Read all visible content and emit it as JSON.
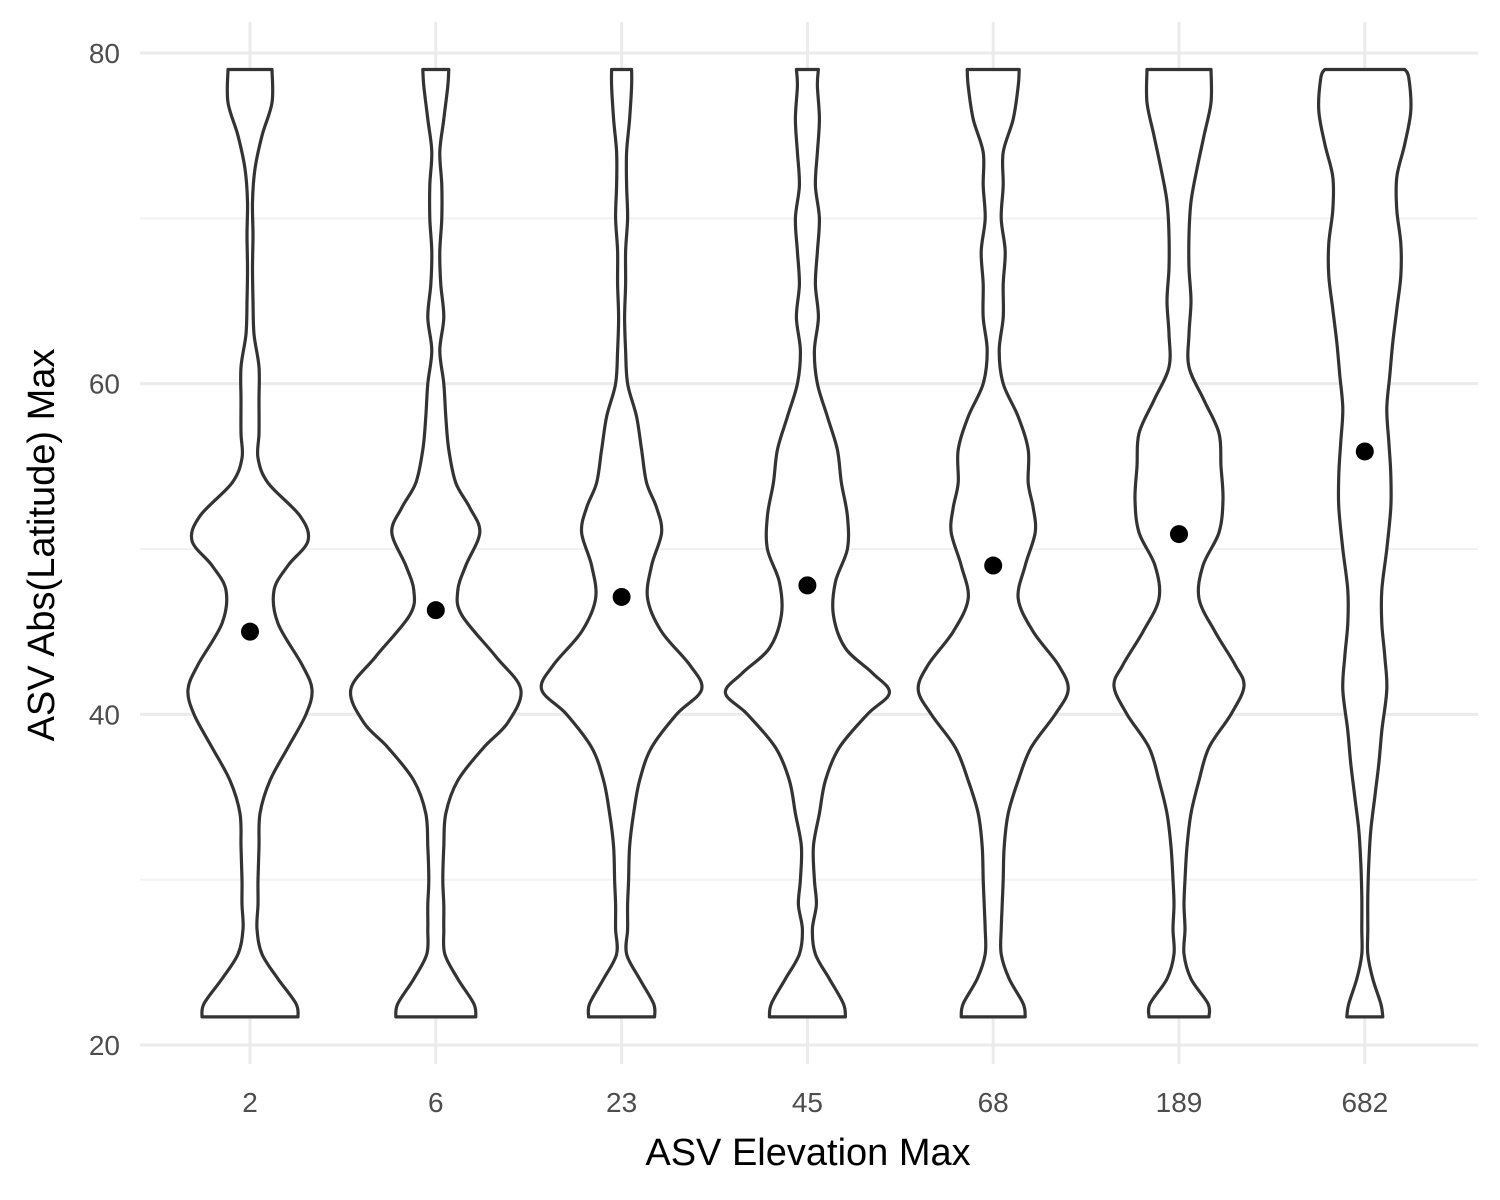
{
  "chart_data": {
    "type": "violin",
    "xlabel": "ASV Elevation Max",
    "ylabel": "ASV Abs(Latitude) Max",
    "categories": [
      "2",
      "6",
      "23",
      "45",
      "68",
      "189",
      "682"
    ],
    "ylim": [
      20,
      80
    ],
    "y_ticks": [
      20,
      40,
      60,
      80
    ],
    "y_tick_labels": [
      "20",
      "40",
      "60",
      "80"
    ],
    "y_range_data": [
      21.7,
      79
    ],
    "grid": "major and minor",
    "points": [
      {
        "category": "2",
        "y": 45.0
      },
      {
        "category": "6",
        "y": 46.3
      },
      {
        "category": "23",
        "y": 47.1
      },
      {
        "category": "45",
        "y": 47.8
      },
      {
        "category": "68",
        "y": 49.0
      },
      {
        "category": "189",
        "y": 50.9
      },
      {
        "category": "682",
        "y": 55.9
      }
    ],
    "series": [
      {
        "category": "2",
        "profile": [
          [
            21.7,
            48
          ],
          [
            22.5,
            46
          ],
          [
            24,
            28
          ],
          [
            25.5,
            12
          ],
          [
            27,
            7
          ],
          [
            28.5,
            8
          ],
          [
            30,
            8
          ],
          [
            32,
            9
          ],
          [
            34,
            10
          ],
          [
            36,
            20
          ],
          [
            38,
            38
          ],
          [
            40,
            56
          ],
          [
            41.5,
            62
          ],
          [
            43,
            52
          ],
          [
            45.5,
            28
          ],
          [
            47.5,
            24
          ],
          [
            49,
            38
          ],
          [
            50.5,
            58
          ],
          [
            52,
            50
          ],
          [
            54,
            18
          ],
          [
            55.5,
            8
          ],
          [
            57,
            9
          ],
          [
            59,
            9
          ],
          [
            61,
            9
          ],
          [
            63,
            4
          ],
          [
            65,
            3
          ],
          [
            67,
            2.5
          ],
          [
            69,
            3
          ],
          [
            71,
            2.5
          ],
          [
            73,
            5
          ],
          [
            75,
            12
          ],
          [
            77,
            22
          ],
          [
            79,
            22
          ]
        ]
      },
      {
        "category": "6",
        "profile": [
          [
            21.7,
            40
          ],
          [
            22.5,
            38
          ],
          [
            24,
            22
          ],
          [
            25.5,
            9
          ],
          [
            27,
            8
          ],
          [
            28.5,
            8
          ],
          [
            30,
            7
          ],
          [
            32,
            8
          ],
          [
            34,
            10
          ],
          [
            36,
            22
          ],
          [
            38,
            48
          ],
          [
            39.5,
            72
          ],
          [
            41.5,
            85
          ],
          [
            43.5,
            60
          ],
          [
            46,
            26
          ],
          [
            47.5,
            22
          ],
          [
            49,
            30
          ],
          [
            51,
            44
          ],
          [
            52.5,
            34
          ],
          [
            54,
            20
          ],
          [
            56,
            13
          ],
          [
            58,
            10
          ],
          [
            60,
            8
          ],
          [
            62,
            4
          ],
          [
            64,
            8
          ],
          [
            66,
            5
          ],
          [
            68,
            4
          ],
          [
            70,
            6
          ],
          [
            72,
            6
          ],
          [
            74,
            4
          ],
          [
            76,
            8
          ],
          [
            78,
            12
          ],
          [
            79,
            13
          ]
        ]
      },
      {
        "category": "23",
        "profile": [
          [
            21.7,
            33
          ],
          [
            22.5,
            32
          ],
          [
            24,
            18
          ],
          [
            25.5,
            5
          ],
          [
            27,
            6
          ],
          [
            28.5,
            6
          ],
          [
            30,
            7
          ],
          [
            32,
            8
          ],
          [
            34,
            12
          ],
          [
            36,
            18
          ],
          [
            38,
            30
          ],
          [
            40,
            55
          ],
          [
            41.5,
            80
          ],
          [
            43,
            68
          ],
          [
            45,
            40
          ],
          [
            47,
            26
          ],
          [
            49,
            30
          ],
          [
            51,
            40
          ],
          [
            52.5,
            35
          ],
          [
            54,
            25
          ],
          [
            56,
            20
          ],
          [
            58,
            15
          ],
          [
            60,
            6
          ],
          [
            62,
            4
          ],
          [
            64,
            3
          ],
          [
            66,
            4
          ],
          [
            68,
            4
          ],
          [
            70,
            6
          ],
          [
            72,
            5
          ],
          [
            74,
            5
          ],
          [
            76,
            8
          ],
          [
            78,
            10
          ],
          [
            79,
            10
          ]
        ]
      },
      {
        "category": "45",
        "profile": [
          [
            21.7,
            38
          ],
          [
            22.5,
            36
          ],
          [
            24,
            22
          ],
          [
            25.5,
            8
          ],
          [
            27,
            5
          ],
          [
            28.5,
            9
          ],
          [
            30,
            7
          ],
          [
            32,
            6
          ],
          [
            34,
            12
          ],
          [
            36,
            18
          ],
          [
            38,
            32
          ],
          [
            40,
            60
          ],
          [
            41.3,
            82
          ],
          [
            42.5,
            65
          ],
          [
            44,
            38
          ],
          [
            46,
            26
          ],
          [
            48,
            28
          ],
          [
            50,
            40
          ],
          [
            52,
            40
          ],
          [
            54,
            34
          ],
          [
            56,
            30
          ],
          [
            58,
            20
          ],
          [
            60,
            10
          ],
          [
            62,
            7
          ],
          [
            64,
            11
          ],
          [
            66,
            8
          ],
          [
            68,
            10
          ],
          [
            70,
            12
          ],
          [
            72,
            8
          ],
          [
            74,
            10
          ],
          [
            76,
            12
          ],
          [
            78,
            10
          ],
          [
            79,
            11
          ]
        ]
      },
      {
        "category": "68",
        "profile": [
          [
            21.7,
            32
          ],
          [
            22.5,
            30
          ],
          [
            24,
            16
          ],
          [
            25.5,
            8
          ],
          [
            27,
            8
          ],
          [
            28.5,
            9
          ],
          [
            30,
            10
          ],
          [
            32,
            11
          ],
          [
            34,
            15
          ],
          [
            36,
            25
          ],
          [
            38,
            38
          ],
          [
            40,
            62
          ],
          [
            41.5,
            75
          ],
          [
            43,
            65
          ],
          [
            45,
            40
          ],
          [
            47,
            25
          ],
          [
            49,
            32
          ],
          [
            51,
            42
          ],
          [
            52.5,
            40
          ],
          [
            54,
            35
          ],
          [
            56,
            35
          ],
          [
            58,
            25
          ],
          [
            60,
            10
          ],
          [
            62,
            6
          ],
          [
            64,
            10
          ],
          [
            66,
            10
          ],
          [
            68,
            12
          ],
          [
            70,
            8
          ],
          [
            72,
            10
          ],
          [
            74,
            10
          ],
          [
            76,
            20
          ],
          [
            78,
            25
          ],
          [
            79,
            26
          ]
        ]
      },
      {
        "category": "189",
        "profile": [
          [
            21.7,
            30
          ],
          [
            22.5,
            29
          ],
          [
            24,
            12
          ],
          [
            25.5,
            5
          ],
          [
            27,
            6
          ],
          [
            28.5,
            5
          ],
          [
            30,
            6
          ],
          [
            32,
            8
          ],
          [
            34,
            12
          ],
          [
            36,
            20
          ],
          [
            38,
            30
          ],
          [
            40,
            52
          ],
          [
            41.7,
            65
          ],
          [
            43,
            56
          ],
          [
            45,
            36
          ],
          [
            47,
            20
          ],
          [
            49,
            24
          ],
          [
            51,
            40
          ],
          [
            53,
            44
          ],
          [
            55,
            42
          ],
          [
            57,
            40
          ],
          [
            59,
            25
          ],
          [
            61,
            10
          ],
          [
            63,
            10
          ],
          [
            65,
            12
          ],
          [
            67,
            10
          ],
          [
            69,
            10
          ],
          [
            71,
            12
          ],
          [
            73,
            18
          ],
          [
            75,
            25
          ],
          [
            77,
            32
          ],
          [
            79,
            32
          ]
        ]
      },
      {
        "category": "682",
        "profile": [
          [
            21.7,
            18
          ],
          [
            22.5,
            16
          ],
          [
            24,
            8
          ],
          [
            25.5,
            3
          ],
          [
            27,
            3
          ],
          [
            29,
            3
          ],
          [
            31,
            4
          ],
          [
            33,
            6
          ],
          [
            35,
            10
          ],
          [
            37,
            14
          ],
          [
            39,
            17
          ],
          [
            41.5,
            22
          ],
          [
            43.5,
            20
          ],
          [
            45.5,
            17
          ],
          [
            47.5,
            17
          ],
          [
            50,
            22
          ],
          [
            52.5,
            26
          ],
          [
            54.5,
            26
          ],
          [
            56.5,
            24
          ],
          [
            58.5,
            22
          ],
          [
            60.5,
            25
          ],
          [
            62.5,
            28
          ],
          [
            64.5,
            32
          ],
          [
            66.5,
            36
          ],
          [
            68.5,
            36
          ],
          [
            70.5,
            32
          ],
          [
            72.5,
            32
          ],
          [
            74.5,
            40
          ],
          [
            76.5,
            46
          ],
          [
            78.5,
            44
          ],
          [
            79,
            40
          ]
        ]
      }
    ]
  }
}
